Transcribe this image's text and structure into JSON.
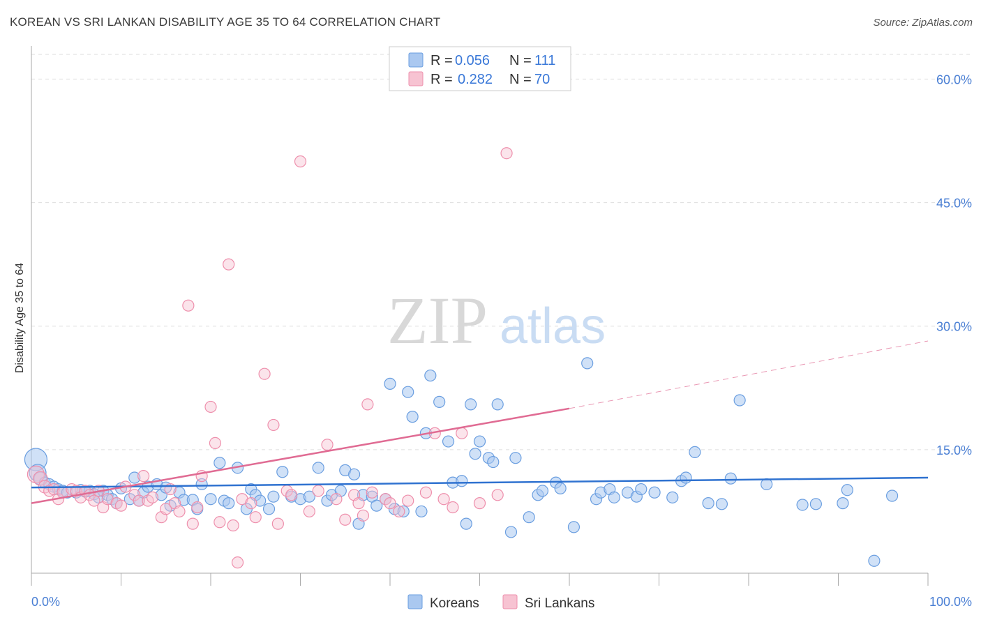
{
  "header": {
    "title": "KOREAN VS SRI LANKAN DISABILITY AGE 35 TO 64 CORRELATION CHART",
    "source": "Source: ZipAtlas.com"
  },
  "watermark": {
    "part1": "ZIP",
    "part2": "atlas"
  },
  "legend": {
    "rows": [
      {
        "r_label": "R =",
        "r_value": "0.056",
        "n_label": "N =",
        "n_value": "111"
      },
      {
        "r_label": "R =",
        "r_value": "0.282",
        "n_label": "N =",
        "n_value": "70"
      }
    ]
  },
  "bottom_legend": {
    "koreans": "Koreans",
    "sri_lankans": "Sri Lankans"
  },
  "chart_data": {
    "type": "scatter",
    "title": "KOREAN VS SRI LANKAN DISABILITY AGE 35 TO 64 CORRELATION CHART",
    "xlabel": "",
    "ylabel": "Disability Age 35 to 64",
    "xlim": [
      0,
      100
    ],
    "ylim": [
      0,
      63
    ],
    "x_tick_labels": [
      "0.0%",
      "100.0%"
    ],
    "y_ticks": [
      15,
      30,
      45,
      60
    ],
    "y_tick_labels": [
      "15.0%",
      "30.0%",
      "45.0%",
      "60.0%"
    ],
    "grid": true,
    "legend_position": "top-center",
    "colors": {
      "koreans_fill": "#aac8f0",
      "koreans_stroke": "#6a9ee0",
      "koreans_line": "#2f72d0",
      "sri_fill": "#f7c3d2",
      "sri_stroke": "#ee8fac",
      "sri_line": "#e06b93",
      "grid": "#dddddd",
      "tick_label": "#4a7fd4"
    },
    "series": [
      {
        "name": "Koreans",
        "r": 0.056,
        "n": 111,
        "trend": {
          "x": [
            0,
            100
          ],
          "y": [
            10.4,
            11.6
          ]
        },
        "points": [
          [
            0.5,
            13.8,
            16
          ],
          [
            0.7,
            12.2,
            12
          ],
          [
            1.0,
            11.5,
            9
          ],
          [
            1.5,
            11.0,
            8
          ],
          [
            2.0,
            10.8,
            8
          ],
          [
            2.5,
            10.5,
            8
          ],
          [
            3.0,
            10.2,
            8
          ],
          [
            3.5,
            10.0,
            8
          ],
          [
            4.0,
            9.8,
            8
          ],
          [
            5.0,
            9.8,
            8
          ],
          [
            5.5,
            10.1,
            8
          ],
          [
            6.0,
            9.9,
            8
          ],
          [
            6.5,
            10.0,
            8
          ],
          [
            7.0,
            9.6,
            8
          ],
          [
            7.5,
            9.2,
            8
          ],
          [
            8.0,
            10.0,
            8
          ],
          [
            8.5,
            9.5,
            8
          ],
          [
            9.0,
            9.0,
            8
          ],
          [
            9.5,
            8.5,
            8
          ],
          [
            10.0,
            10.3,
            8
          ],
          [
            11.0,
            9.0,
            8
          ],
          [
            11.5,
            11.6,
            8
          ],
          [
            12.0,
            8.8,
            8
          ],
          [
            12.5,
            9.8,
            8
          ],
          [
            13.0,
            10.5,
            8
          ],
          [
            14.0,
            10.8,
            8
          ],
          [
            14.5,
            9.5,
            8
          ],
          [
            15.0,
            10.4,
            8
          ],
          [
            15.5,
            8.2,
            8
          ],
          [
            16.5,
            9.8,
            8
          ],
          [
            17.0,
            8.9,
            8
          ],
          [
            18.0,
            8.9,
            8
          ],
          [
            18.5,
            7.8,
            8
          ],
          [
            19.0,
            10.8,
            8
          ],
          [
            20.0,
            9.0,
            8
          ],
          [
            21.0,
            13.4,
            8
          ],
          [
            21.5,
            8.8,
            8
          ],
          [
            22.0,
            8.5,
            8
          ],
          [
            23.0,
            12.8,
            8
          ],
          [
            24.0,
            7.8,
            8
          ],
          [
            24.5,
            10.2,
            8
          ],
          [
            25.0,
            9.5,
            8
          ],
          [
            25.5,
            8.8,
            8
          ],
          [
            26.5,
            7.8,
            8
          ],
          [
            27.0,
            9.3,
            8
          ],
          [
            28.0,
            12.3,
            8
          ],
          [
            29.0,
            9.3,
            8
          ],
          [
            30.0,
            9.0,
            8
          ],
          [
            31.0,
            9.3,
            8
          ],
          [
            32.0,
            12.8,
            8
          ],
          [
            33.0,
            8.8,
            8
          ],
          [
            33.5,
            9.5,
            8
          ],
          [
            34.5,
            10.0,
            8
          ],
          [
            35.0,
            12.5,
            8
          ],
          [
            36.0,
            12.0,
            8
          ],
          [
            36.5,
            6.0,
            8
          ],
          [
            37.0,
            9.5,
            8
          ],
          [
            38.0,
            9.3,
            8
          ],
          [
            38.5,
            8.2,
            8
          ],
          [
            39.5,
            9.0,
            8
          ],
          [
            40.0,
            23.0,
            8
          ],
          [
            40.5,
            7.8,
            8
          ],
          [
            41.5,
            7.5,
            8
          ],
          [
            42.0,
            22.0,
            8
          ],
          [
            42.5,
            19.0,
            8
          ],
          [
            43.5,
            7.5,
            8
          ],
          [
            44.0,
            17.0,
            8
          ],
          [
            44.5,
            24.0,
            8
          ],
          [
            45.5,
            20.8,
            8
          ],
          [
            46.5,
            16.0,
            8
          ],
          [
            47.0,
            11.0,
            8
          ],
          [
            48.0,
            11.2,
            8
          ],
          [
            48.5,
            6.0,
            8
          ],
          [
            49.0,
            20.5,
            8
          ],
          [
            49.5,
            14.5,
            8
          ],
          [
            50.0,
            16.0,
            8
          ],
          [
            51.0,
            14.0,
            8
          ],
          [
            51.5,
            13.5,
            8
          ],
          [
            52.0,
            20.5,
            8
          ],
          [
            53.5,
            5.0,
            8
          ],
          [
            54.0,
            14.0,
            8
          ],
          [
            55.5,
            6.8,
            8
          ],
          [
            56.5,
            9.5,
            8
          ],
          [
            57.0,
            10.0,
            8
          ],
          [
            58.5,
            11.0,
            8
          ],
          [
            59.0,
            10.3,
            8
          ],
          [
            60.5,
            5.6,
            8
          ],
          [
            62.0,
            25.5,
            8
          ],
          [
            63.0,
            9.0,
            8
          ],
          [
            63.5,
            9.8,
            8
          ],
          [
            64.5,
            10.2,
            8
          ],
          [
            65.0,
            9.2,
            8
          ],
          [
            66.5,
            9.8,
            8
          ],
          [
            67.5,
            9.3,
            8
          ],
          [
            68.0,
            10.2,
            8
          ],
          [
            69.5,
            9.8,
            8
          ],
          [
            71.5,
            9.2,
            8
          ],
          [
            72.5,
            11.2,
            8
          ],
          [
            73.0,
            11.6,
            8
          ],
          [
            74.0,
            14.7,
            8
          ],
          [
            75.5,
            8.5,
            8
          ],
          [
            77.0,
            8.4,
            8
          ],
          [
            78.0,
            11.5,
            8
          ],
          [
            79.0,
            21.0,
            8
          ],
          [
            82.0,
            10.8,
            8
          ],
          [
            86.0,
            8.3,
            8
          ],
          [
            87.5,
            8.4,
            8
          ],
          [
            90.5,
            8.5,
            8
          ],
          [
            91.0,
            10.1,
            8
          ],
          [
            94.0,
            1.5,
            8
          ],
          [
            96.0,
            9.4,
            8
          ]
        ]
      },
      {
        "name": "Sri Lankans",
        "r": 0.282,
        "n": 70,
        "trend": {
          "x": [
            0,
            60
          ],
          "y": [
            8.5,
            20.0
          ]
        },
        "trend_dashed": {
          "x": [
            60,
            100
          ],
          "y": [
            20.0,
            28.2
          ]
        },
        "points": [
          [
            0.5,
            12.0,
            12
          ],
          [
            1.0,
            11.5,
            10
          ],
          [
            1.5,
            10.5,
            9
          ],
          [
            2.0,
            10.0,
            8
          ],
          [
            2.5,
            10.2,
            8
          ],
          [
            3.0,
            9.0,
            8
          ],
          [
            3.5,
            9.8,
            8
          ],
          [
            4.5,
            10.2,
            8
          ],
          [
            5.0,
            10.0,
            8
          ],
          [
            5.5,
            9.2,
            8
          ],
          [
            6.0,
            10.0,
            8
          ],
          [
            6.5,
            9.5,
            8
          ],
          [
            7.0,
            8.8,
            8
          ],
          [
            7.5,
            10.0,
            8
          ],
          [
            8.0,
            8.0,
            8
          ],
          [
            8.5,
            9.0,
            8
          ],
          [
            9.5,
            8.5,
            8
          ],
          [
            10.0,
            8.2,
            8
          ],
          [
            10.5,
            10.5,
            8
          ],
          [
            11.5,
            9.5,
            8
          ],
          [
            12.0,
            8.8,
            8
          ],
          [
            12.5,
            11.8,
            8
          ],
          [
            13.0,
            8.8,
            8
          ],
          [
            13.5,
            9.2,
            8
          ],
          [
            14.5,
            6.8,
            8
          ],
          [
            15.0,
            7.8,
            8
          ],
          [
            15.5,
            10.2,
            8
          ],
          [
            16.0,
            8.5,
            8
          ],
          [
            16.5,
            7.5,
            8
          ],
          [
            17.5,
            32.5,
            8
          ],
          [
            18.0,
            6.0,
            8
          ],
          [
            18.5,
            8.0,
            8
          ],
          [
            19.0,
            11.8,
            8
          ],
          [
            20.0,
            20.2,
            8
          ],
          [
            20.5,
            15.8,
            8
          ],
          [
            21.0,
            6.2,
            8
          ],
          [
            22.0,
            37.5,
            8
          ],
          [
            22.5,
            5.8,
            8
          ],
          [
            23.0,
            1.3,
            8
          ],
          [
            23.5,
            9.0,
            8
          ],
          [
            24.5,
            8.5,
            8
          ],
          [
            25.0,
            6.8,
            8
          ],
          [
            26.0,
            24.2,
            8
          ],
          [
            27.0,
            18.0,
            8
          ],
          [
            27.5,
            6.0,
            8
          ],
          [
            28.5,
            10.0,
            8
          ],
          [
            29.0,
            9.5,
            8
          ],
          [
            30.0,
            50.0,
            8
          ],
          [
            31.0,
            7.5,
            8
          ],
          [
            32.0,
            10.0,
            8
          ],
          [
            33.0,
            15.6,
            8
          ],
          [
            35.0,
            6.5,
            8
          ],
          [
            36.0,
            9.5,
            8
          ],
          [
            36.5,
            8.5,
            8
          ],
          [
            37.0,
            7.0,
            8
          ],
          [
            37.5,
            20.5,
            8
          ],
          [
            38.0,
            9.8,
            8
          ],
          [
            39.5,
            9.0,
            8
          ],
          [
            40.0,
            8.5,
            8
          ],
          [
            41.0,
            7.5,
            8
          ],
          [
            45.0,
            17.0,
            8
          ],
          [
            46.0,
            9.0,
            8
          ],
          [
            48.0,
            17.0,
            8
          ],
          [
            50.0,
            8.5,
            8
          ],
          [
            52.0,
            9.5,
            8
          ],
          [
            53.0,
            51.0,
            8
          ],
          [
            47.0,
            8.0,
            8
          ],
          [
            34.0,
            9.0,
            8
          ],
          [
            44.0,
            9.8,
            8
          ],
          [
            42.0,
            8.8,
            8
          ]
        ]
      }
    ]
  }
}
